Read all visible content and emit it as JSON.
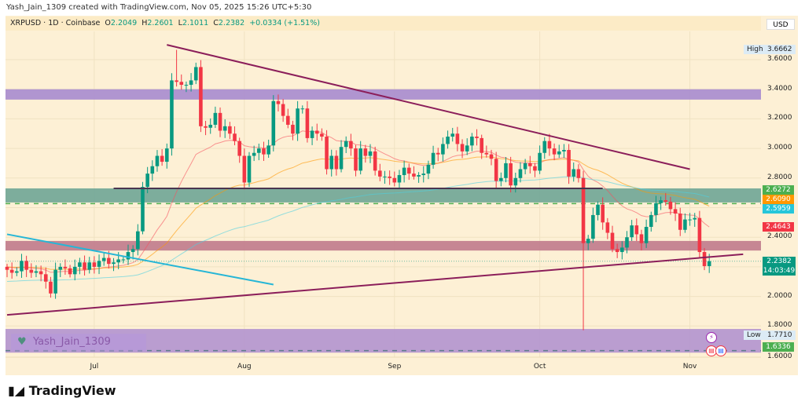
{
  "credit": "Yash_Jain_1309 created with TradingView.com, Nov 05, 2025 15:26 UTC+5:30",
  "legend": {
    "symbol": "XRPUSD · 1D · Coinbase",
    "o_label": "O",
    "o": "2.2049",
    "h_label": "H",
    "h": "2.2601",
    "l_label": "L",
    "l": "2.1011",
    "c_label": "C",
    "c": "2.2382",
    "change": "+0.0334 (+1.51%)"
  },
  "currency_button": "USD",
  "watermark": "Yash_Jain_1309",
  "brand": "TradingView",
  "colors": {
    "up": "#089981",
    "down": "#f23645",
    "background": "#fdf0d5",
    "ema_fast": "#f7525f",
    "ema_mid": "#ff9800",
    "ma_slow": "#4dd0e1"
  },
  "chart_data": {
    "type": "candlestick",
    "symbol": "XRPUSD",
    "interval": "1D",
    "y_ticks": [
      "3.6000",
      "3.4000",
      "3.2000",
      "3.0000",
      "2.8000",
      "2.4000",
      "2.0000",
      "1.8000",
      "1.6000"
    ],
    "x_ticks": [
      {
        "label": "Jul",
        "date": "2025-07-01"
      },
      {
        "label": "Aug",
        "date": "2025-08-01"
      },
      {
        "label": "Sep",
        "date": "2025-09-01"
      },
      {
        "label": "Oct",
        "date": "2025-10-01"
      },
      {
        "label": "Nov",
        "date": "2025-11-01"
      }
    ],
    "first_open": 2.2,
    "closes_by_month": [
      {
        "month": "2025-06",
        "first_day": 13,
        "closes": [
          2.18,
          2.16,
          2.17,
          2.24,
          2.18,
          2.16,
          2.17,
          2.15,
          2.1,
          2.02,
          2.18,
          2.2,
          2.19,
          2.15,
          2.2,
          2.23,
          2.18,
          2.23
        ]
      },
      {
        "month": "2025-07",
        "first_day": 1,
        "closes": [
          2.2,
          2.24,
          2.26,
          2.22,
          2.23,
          2.25,
          2.25,
          2.3,
          2.32,
          2.44,
          2.74,
          2.83,
          2.88,
          2.95,
          2.91,
          3.0,
          3.46,
          3.45,
          3.43,
          3.43,
          3.46,
          3.55,
          3.15,
          3.14,
          3.16,
          3.24,
          3.12,
          3.15,
          3.1,
          3.05,
          2.95
        ]
      },
      {
        "month": "2025-08",
        "first_day": 1,
        "closes": [
          2.77,
          2.95,
          2.97,
          3.0,
          2.96,
          3.02,
          3.32,
          3.3,
          3.22,
          3.16,
          3.1,
          3.27,
          3.27,
          3.07,
          3.12,
          3.1,
          3.08,
          2.86,
          2.95,
          2.86,
          3.01,
          3.05,
          3.0,
          2.85,
          3.0,
          2.95,
          2.98,
          2.85,
          2.81,
          2.81,
          2.8
        ]
      },
      {
        "month": "2025-09",
        "first_day": 1,
        "closes": [
          2.77,
          2.82,
          2.87,
          2.83,
          2.81,
          2.82,
          2.83,
          2.89,
          2.97,
          2.96,
          3.03,
          3.08,
          3.1,
          3.03,
          2.98,
          3.02,
          3.08,
          3.07,
          2.97,
          2.96,
          2.93,
          2.78,
          2.8,
          2.9,
          2.75,
          2.8,
          2.86,
          2.9,
          2.88,
          2.85
        ]
      },
      {
        "month": "2025-10",
        "first_day": 1,
        "closes": [
          2.97,
          3.05,
          3.0,
          2.96,
          2.98,
          2.99,
          2.81,
          2.86,
          2.8,
          2.36,
          2.39,
          2.55,
          2.62,
          2.5,
          2.43,
          2.32,
          2.3,
          2.33,
          2.4,
          2.48,
          2.42,
          2.36,
          2.47,
          2.55,
          2.63,
          2.65,
          2.64,
          2.59,
          2.56,
          2.45,
          2.52
        ]
      },
      {
        "month": "2025-11",
        "first_day": 1,
        "closes": [
          2.52,
          2.53,
          2.3,
          2.2049,
          2.2382
        ]
      }
    ],
    "high": {
      "label": "High",
      "value": "3.6662",
      "date": "2025-07-18"
    },
    "low": {
      "label": "Low",
      "value": "1.7710",
      "date": "2025-10-10"
    },
    "price_labels": [
      {
        "value": "2.6272",
        "color": "#4caf50"
      },
      {
        "value": "2.6090",
        "color": "#ff9800"
      },
      {
        "value": "2.5959",
        "color": "#26c6da"
      },
      {
        "value": "2.4643",
        "color": "#f23645"
      },
      {
        "value": "1.6336",
        "color": "#4caf50"
      }
    ],
    "last_price": {
      "value": "2.2382",
      "countdown": "14:03:49",
      "color": "#089981"
    },
    "zones": [
      {
        "from": 3.33,
        "to": 3.4,
        "color": "#a78bcf"
      },
      {
        "from": 2.635,
        "to": 2.73,
        "color": "#6fa596"
      },
      {
        "from": 2.31,
        "to": 2.375,
        "color": "#c07a8c"
      },
      {
        "from": 1.62,
        "to": 1.78,
        "color": "#b294cf"
      }
    ],
    "dashed_levels": [
      {
        "price": 2.6272,
        "color": "#4caf50"
      },
      {
        "price": 1.6336,
        "color": "#607d8b"
      }
    ],
    "trendlines": [
      {
        "from": {
          "date": "2025-07-16",
          "price": 3.7
        },
        "to": {
          "date": "2025-11-01",
          "price": 2.86
        },
        "color": "#8b1e5a"
      },
      {
        "from": {
          "date": "2025-07-05",
          "price": 2.73
        },
        "to": {
          "date": "2025-10-14",
          "price": 2.73
        },
        "color": "#4a3550"
      },
      {
        "from": {
          "date": "2025-06-13",
          "price": 2.42
        },
        "to": {
          "date": "2025-08-07",
          "price": 2.08
        },
        "color": "#26b6d6"
      },
      {
        "from": {
          "date": "2025-06-13",
          "price": 1.875
        },
        "to": {
          "date": "2025-11-12",
          "price": 2.285
        },
        "color": "#8b1e5a"
      }
    ]
  }
}
